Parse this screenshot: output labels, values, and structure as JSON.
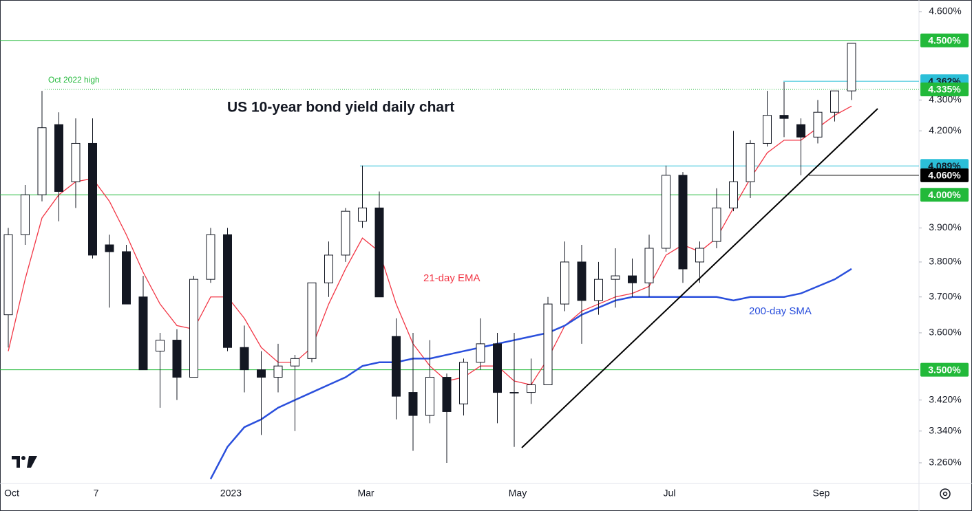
{
  "chart_data": {
    "type": "candlestick",
    "title": "US 10-year bond yield daily chart",
    "annotation": "Oct 2022 high",
    "log": true,
    "up_color": "#ffffff",
    "down_color": "#131722",
    "categories": [
      "Oct",
      null,
      null,
      null,
      null,
      "7",
      null,
      null,
      null,
      null,
      null,
      null,
      null,
      "2023",
      null,
      null,
      null,
      null,
      null,
      null,
      null,
      "Mar",
      null,
      null,
      null,
      null,
      null,
      null,
      null,
      null,
      "May",
      null,
      null,
      null,
      null,
      null,
      null,
      null,
      null,
      "Jul",
      null,
      null,
      null,
      null,
      null,
      null,
      null,
      null,
      "Sep",
      null,
      null
    ],
    "open": [
      3.65,
      3.88,
      4.0,
      4.22,
      4.04,
      4.16,
      3.85,
      3.83,
      3.7,
      3.55,
      3.58,
      3.48,
      3.75,
      3.88,
      3.56,
      3.5,
      3.48,
      3.51,
      3.53,
      3.74,
      3.82,
      3.92,
      3.96,
      3.59,
      3.44,
      3.38,
      3.48,
      3.41,
      3.52,
      3.57,
      3.44,
      3.44,
      3.46,
      3.68,
      3.8,
      3.69,
      3.75,
      3.76,
      3.74,
      3.84,
      4.06,
      3.8,
      3.86,
      3.96,
      4.04,
      4.16,
      4.25,
      4.22,
      4.18,
      4.26,
      4.33
    ],
    "high": [
      3.9,
      4.03,
      4.33,
      4.26,
      4.24,
      4.24,
      3.88,
      3.85,
      3.76,
      3.6,
      3.61,
      3.76,
      3.9,
      3.9,
      3.62,
      3.55,
      3.57,
      3.54,
      3.74,
      3.86,
      3.96,
      4.09,
      4.01,
      3.64,
      3.6,
      3.58,
      3.49,
      3.53,
      3.64,
      3.6,
      3.6,
      3.53,
      3.7,
      3.86,
      3.85,
      3.8,
      3.84,
      3.81,
      3.88,
      4.09,
      4.07,
      3.86,
      4.02,
      4.2,
      4.17,
      4.33,
      4.36,
      4.24,
      4.3,
      4.33,
      4.49
    ],
    "low": [
      3.56,
      3.85,
      3.98,
      3.92,
      3.96,
      3.81,
      3.67,
      3.68,
      3.5,
      3.4,
      3.42,
      3.48,
      3.74,
      3.55,
      3.44,
      3.33,
      3.44,
      3.34,
      3.52,
      3.7,
      3.8,
      3.9,
      3.7,
      3.37,
      3.29,
      3.36,
      3.26,
      3.38,
      3.5,
      3.36,
      3.3,
      3.41,
      3.46,
      3.66,
      3.57,
      3.65,
      3.67,
      3.7,
      3.7,
      3.83,
      3.74,
      3.74,
      3.84,
      3.95,
      3.99,
      4.15,
      4.18,
      4.06,
      4.16,
      4.23,
      4.3
    ],
    "close": [
      3.88,
      4.0,
      4.21,
      4.01,
      4.16,
      3.82,
      3.83,
      3.68,
      3.5,
      3.58,
      3.48,
      3.75,
      3.88,
      3.56,
      3.5,
      3.48,
      3.51,
      3.53,
      3.74,
      3.82,
      3.95,
      3.96,
      3.7,
      3.43,
      3.38,
      3.48,
      3.39,
      3.52,
      3.57,
      3.44,
      3.44,
      3.46,
      3.68,
      3.8,
      3.69,
      3.75,
      3.76,
      3.74,
      3.84,
      4.06,
      3.78,
      3.84,
      3.96,
      4.04,
      4.16,
      4.25,
      4.24,
      4.18,
      4.26,
      4.33,
      4.49
    ],
    "series": [
      {
        "name": "21-day EMA",
        "color": "#f23645",
        "values": [
          3.55,
          3.75,
          3.93,
          4.0,
          4.04,
          4.05,
          3.98,
          3.88,
          3.77,
          3.68,
          3.62,
          3.61,
          3.7,
          3.7,
          3.64,
          3.56,
          3.52,
          3.52,
          3.56,
          3.68,
          3.78,
          3.87,
          3.83,
          3.68,
          3.57,
          3.51,
          3.47,
          3.48,
          3.51,
          3.51,
          3.47,
          3.46,
          3.53,
          3.62,
          3.66,
          3.68,
          3.7,
          3.71,
          3.73,
          3.82,
          3.85,
          3.83,
          3.87,
          3.96,
          4.05,
          4.13,
          4.17,
          4.17,
          4.21,
          4.25,
          4.28
        ]
      },
      {
        "name": "200-day SMA",
        "color": "#2a4fdc",
        "values": [
          null,
          null,
          null,
          null,
          null,
          null,
          null,
          null,
          null,
          null,
          null,
          null,
          3.22,
          3.3,
          3.35,
          3.37,
          3.4,
          3.42,
          3.44,
          3.46,
          3.48,
          3.51,
          3.52,
          3.52,
          3.53,
          3.53,
          3.54,
          3.55,
          3.56,
          3.57,
          3.58,
          3.59,
          3.6,
          3.62,
          3.65,
          3.67,
          3.69,
          3.7,
          3.7,
          3.7,
          3.7,
          3.7,
          3.7,
          3.69,
          3.7,
          3.7,
          3.7,
          3.71,
          3.73,
          3.75,
          3.78
        ]
      }
    ],
    "levels": [
      {
        "value": 4.5,
        "label": "4.500%",
        "color": "#22b93a",
        "text_color": "#ffffff"
      },
      {
        "value": 4.362,
        "label": "4.362%",
        "color": "#2bbfd8",
        "text_color": "#131722"
      },
      {
        "value": 4.335,
        "label": "4.335%",
        "color": "#22b93a",
        "text_color": "#ffffff"
      },
      {
        "value": 4.089,
        "label": "4.089%",
        "color": "#2bbfd8",
        "text_color": "#131722"
      },
      {
        "value": 4.06,
        "label": "4.060%",
        "color": "#000000",
        "text_color": "#ffffff"
      },
      {
        "value": 4.0,
        "label": "4.000%",
        "color": "#22b93a",
        "text_color": "#ffffff"
      },
      {
        "value": 3.5,
        "label": "3.500%",
        "color": "#22b93a",
        "text_color": "#ffffff"
      }
    ],
    "ylim": [
      3.209,
      4.641
    ],
    "yticks": [
      {
        "value": 4.6,
        "label": "4.600%"
      },
      {
        "value": 4.3,
        "label": "4.300%"
      },
      {
        "value": 4.2,
        "label": "4.200%"
      },
      {
        "value": 3.9,
        "label": "3.900%"
      },
      {
        "value": 3.8,
        "label": "3.800%"
      },
      {
        "value": 3.7,
        "label": "3.700%"
      },
      {
        "value": 3.6,
        "label": "3.600%"
      },
      {
        "value": 3.42,
        "label": "3.420%"
      },
      {
        "value": 3.34,
        "label": "3.340%"
      },
      {
        "value": 3.26,
        "label": "3.260%"
      }
    ]
  }
}
